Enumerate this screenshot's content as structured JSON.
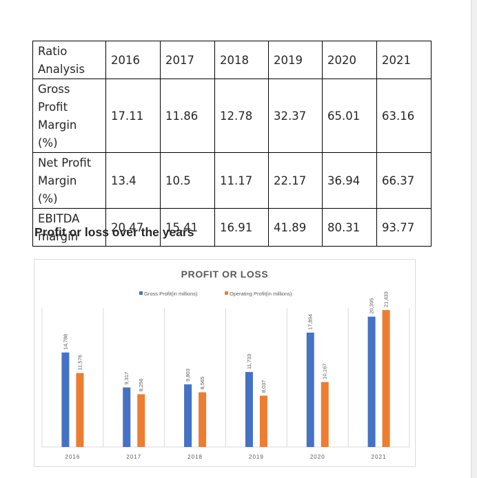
{
  "ratio_table": {
    "header": {
      "label": "Ratio Analysis",
      "years": [
        "2016",
        "2017",
        "2018",
        "2019",
        "2020",
        "2021"
      ]
    },
    "rows": [
      {
        "label": "Gross Profit Margin (%)",
        "values": [
          "17.11",
          "11.86",
          "12.78",
          "32.37",
          "65.01",
          "63.16"
        ]
      },
      {
        "label": "Net Profit Margin (%)",
        "values": [
          "13.4",
          "10.5",
          "11.17",
          "22.17",
          "36.94",
          "66.37"
        ]
      },
      {
        "label": "EBITDA margin",
        "values": [
          "20.47",
          "15.41",
          "16.91",
          "41.89",
          "80.31",
          "93.77"
        ]
      }
    ]
  },
  "section_heading": "Profit or loss over the years",
  "chart_data": {
    "type": "bar",
    "title": "PROFIT OR LOSS",
    "categories": [
      "2016",
      "2017",
      "2018",
      "2019",
      "2020",
      "2021"
    ],
    "series": [
      {
        "name": "Gross Profit(in millions)",
        "color": "#4472c4",
        "values": [
          14788,
          9317,
          9803,
          11733,
          17894,
          20395
        ],
        "labels": [
          "14,788",
          "9,317",
          "9,803",
          "11,733",
          "17,894",
          "20,395"
        ]
      },
      {
        "name": "Operating Profit(in millions)",
        "color": "#ed7d31",
        "values": [
          11576,
          8256,
          8565,
          8037,
          10167,
          21433
        ],
        "labels": [
          "11,576",
          "8,256",
          "8,565",
          "8,037",
          "10,167",
          "21,433"
        ]
      }
    ],
    "ylim": [
      0,
      25000
    ],
    "legend": "top",
    "grid": "vertical category separators",
    "xlabel": "",
    "ylabel": ""
  }
}
